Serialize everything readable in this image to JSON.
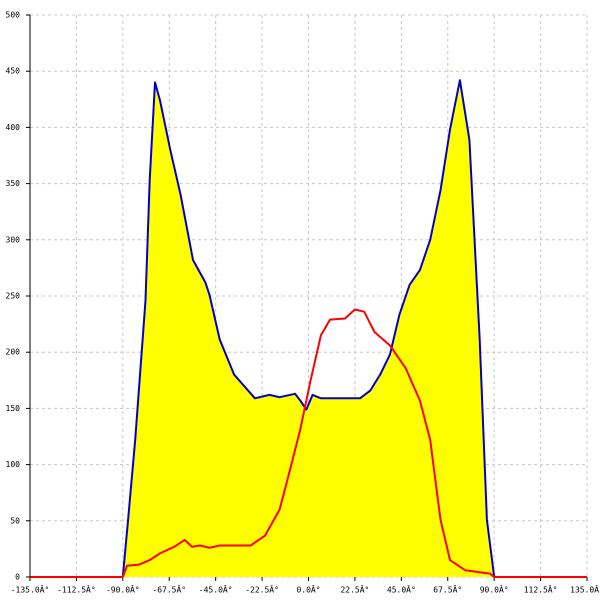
{
  "chart_data": {
    "type": "area-line",
    "xlim": [
      -135,
      135
    ],
    "xticks": [
      {
        "value": -135,
        "label": "-135.0Â°"
      },
      {
        "value": -112.5,
        "label": "-112.5Â°"
      },
      {
        "value": -90,
        "label": "-90.0Â°"
      },
      {
        "value": -67.5,
        "label": "-67.5Â°"
      },
      {
        "value": -45,
        "label": "-45.0Â°"
      },
      {
        "value": -22.5,
        "label": "-22.5Â°"
      },
      {
        "value": 0,
        "label": "0.0Â°"
      },
      {
        "value": 22.5,
        "label": "22.5Â°"
      },
      {
        "value": 45,
        "label": "45.0Â°"
      },
      {
        "value": 67.5,
        "label": "67.5Â°"
      },
      {
        "value": 90,
        "label": "90.0Â°"
      },
      {
        "value": 112.5,
        "label": "112.5Â°"
      },
      {
        "value": 135,
        "label": "135.0Â°"
      }
    ],
    "ylim": [
      0,
      500
    ],
    "yticks": [
      0,
      50,
      100,
      150,
      200,
      250,
      300,
      350,
      400,
      450,
      500
    ],
    "grid": true,
    "series": [
      {
        "color": "#0000cc",
        "fill": "#ffff00",
        "x": [
          -90,
          -87.5,
          -84,
          -79,
          -77,
          -74.4,
          -72,
          -67,
          -62,
          -56,
          -50,
          -48,
          -43,
          -36,
          -26,
          -19,
          -14,
          -6.5,
          -4,
          -1,
          2,
          6,
          15,
          25,
          30,
          35,
          39.5,
          44,
          49,
          54,
          59,
          64,
          68.6,
          73.4,
          78,
          83,
          86.5,
          90
        ],
        "values": [
          0,
          50,
          122,
          246,
          353,
          440,
          424,
          380,
          340,
          282,
          262,
          251,
          211,
          180,
          159,
          162,
          160,
          163,
          157,
          149,
          162,
          159,
          159,
          159,
          166,
          181,
          198,
          233,
          260,
          273,
          300,
          344,
          398,
          442,
          389,
          211,
          51,
          0
        ]
      },
      {
        "color": "#ff0000",
        "x": [
          -135,
          -90,
          -88,
          -82,
          -77,
          -72,
          -65,
          -60,
          -56.5,
          -52.6,
          -48,
          -43,
          -28,
          -21,
          -14,
          -9,
          -4,
          1,
          6,
          10.4,
          17.7,
          22.5,
          27,
          32,
          39.5,
          47,
          54,
          59,
          64,
          68.6,
          76,
          88,
          90,
          135
        ],
        "values": [
          0,
          0,
          10,
          11,
          15,
          21,
          27,
          33,
          27,
          28,
          26,
          28,
          28,
          37,
          60,
          95,
          131,
          175,
          215,
          229,
          230,
          238,
          236,
          218,
          206,
          186,
          157,
          122,
          51,
          15,
          6,
          3,
          0,
          0
        ]
      }
    ]
  }
}
